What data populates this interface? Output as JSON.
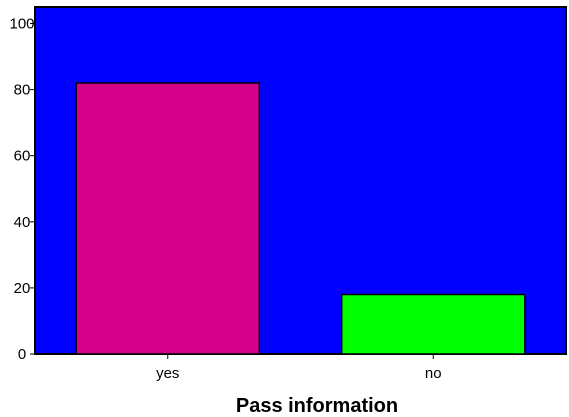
{
  "chart_data": {
    "type": "bar",
    "title": "",
    "xlabel": "Pass information",
    "ylabel": "",
    "categories": [
      "yes",
      "no"
    ],
    "values": [
      82,
      18
    ],
    "bar_colors": [
      "#d4008c",
      "#00ff00"
    ],
    "background_color": "#0000ff",
    "ylim": [
      0,
      105
    ],
    "yticks": [
      0,
      20,
      40,
      60,
      80,
      100
    ],
    "grid": false
  }
}
